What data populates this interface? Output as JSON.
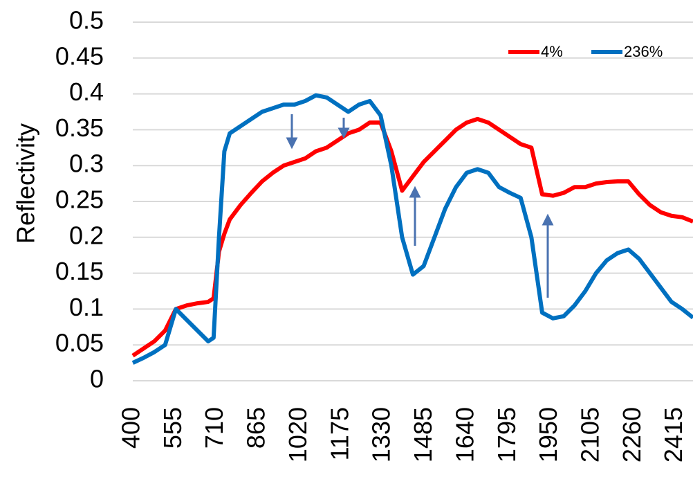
{
  "chart_data": {
    "type": "line",
    "y_label": "Reflectivity",
    "x": [
      400,
      440,
      480,
      520,
      560,
      600,
      640,
      680,
      700,
      720,
      740,
      760,
      800,
      840,
      880,
      920,
      960,
      1000,
      1040,
      1080,
      1120,
      1160,
      1200,
      1240,
      1280,
      1320,
      1360,
      1400,
      1440,
      1480,
      1520,
      1560,
      1600,
      1640,
      1680,
      1720,
      1760,
      1800,
      1840,
      1880,
      1920,
      1960,
      2000,
      2040,
      2080,
      2120,
      2160,
      2200,
      2240,
      2280,
      2320,
      2360,
      2400,
      2440,
      2480
    ],
    "series": [
      {
        "name": "4%",
        "color": "#ff0000",
        "values": [
          0.035,
          0.045,
          0.055,
          0.07,
          0.1,
          0.105,
          0.108,
          0.11,
          0.115,
          0.18,
          0.205,
          0.225,
          0.245,
          0.262,
          0.278,
          0.29,
          0.3,
          0.305,
          0.31,
          0.32,
          0.325,
          0.335,
          0.345,
          0.35,
          0.36,
          0.36,
          0.32,
          0.265,
          0.285,
          0.305,
          0.32,
          0.335,
          0.35,
          0.36,
          0.365,
          0.36,
          0.35,
          0.34,
          0.33,
          0.325,
          0.26,
          0.258,
          0.262,
          0.27,
          0.27,
          0.275,
          0.277,
          0.278,
          0.278,
          0.26,
          0.245,
          0.235,
          0.23,
          0.228,
          0.222
        ]
      },
      {
        "name": "236%",
        "color": "#0070c0",
        "values": [
          0.025,
          0.032,
          0.04,
          0.05,
          0.1,
          0.085,
          0.07,
          0.055,
          0.06,
          0.2,
          0.32,
          0.345,
          0.355,
          0.365,
          0.375,
          0.38,
          0.385,
          0.385,
          0.39,
          0.398,
          0.395,
          0.385,
          0.375,
          0.385,
          0.39,
          0.37,
          0.3,
          0.2,
          0.148,
          0.16,
          0.2,
          0.24,
          0.27,
          0.29,
          0.295,
          0.29,
          0.27,
          0.262,
          0.255,
          0.2,
          0.095,
          0.087,
          0.09,
          0.105,
          0.125,
          0.15,
          0.168,
          0.178,
          0.183,
          0.17,
          0.15,
          0.13,
          0.11,
          0.1,
          0.088
        ]
      }
    ],
    "xlim": [
      400,
      2480
    ],
    "xticks": [
      400,
      555,
      710,
      865,
      1020,
      1175,
      1330,
      1485,
      1640,
      1795,
      1950,
      2105,
      2260,
      2415
    ],
    "ylim": [
      0,
      0.5
    ],
    "yticks": [
      0,
      0.05,
      0.1,
      0.15,
      0.2,
      0.25,
      0.3,
      0.35,
      0.4,
      0.45,
      0.5
    ],
    "grid": true,
    "legend": "top-right"
  }
}
